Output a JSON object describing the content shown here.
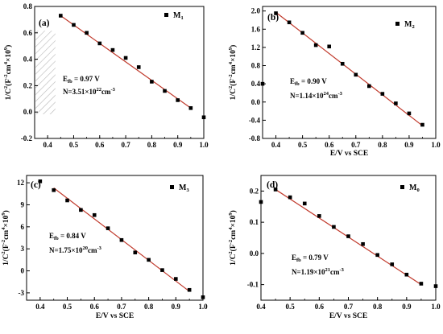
{
  "chart_data": [
    {
      "type": "scatter",
      "panel_label": "(a)",
      "legend": {
        "marker": "■",
        "name": "M",
        "subscript": "1"
      },
      "xlabel": "",
      "ylabel": {
        "main": "1/C",
        "sup1": "2",
        "mid": "(F",
        "sup2": "-2",
        "mid2": "cm",
        "sup3": "4",
        "end": "×10",
        "sup4": "9",
        "close": ")"
      },
      "xlim": [
        0.35,
        1.0
      ],
      "ylim": [
        -0.2,
        0.8
      ],
      "xticks": [
        "0.4",
        "0.5",
        "0.6",
        "0.7",
        "0.8",
        "0.9",
        "1.0"
      ],
      "xtick_values": [
        0.4,
        0.5,
        0.6,
        0.7,
        0.8,
        0.9,
        1.0
      ],
      "yticks": [
        "-0.2",
        "0.0",
        "0.2",
        "0.4",
        "0.6",
        "0.8"
      ],
      "ytick_values": [
        -0.2,
        0.0,
        0.2,
        0.4,
        0.6,
        0.8
      ],
      "x": [
        0.45,
        0.5,
        0.55,
        0.6,
        0.65,
        0.7,
        0.75,
        0.8,
        0.85,
        0.9,
        0.95,
        1.0
      ],
      "y": [
        0.73,
        0.66,
        0.6,
        0.52,
        0.47,
        0.41,
        0.34,
        0.23,
        0.16,
        0.09,
        0.03,
        -0.04
      ],
      "fit": {
        "x": [
          0.45,
          0.95
        ],
        "y": [
          0.73,
          0.03
        ]
      },
      "annotation": {
        "efb": {
          "pre": "E",
          "sub": "fb",
          "post": "= 0.97 V"
        },
        "n": {
          "pre": "N=3.51×10",
          "sup": "22",
          "post": "cm",
          "sup2": "-3"
        }
      },
      "hatched_region": true
    },
    {
      "type": "scatter",
      "panel_label": "(b)",
      "legend": {
        "marker": "■",
        "name": "M",
        "subscript": "2"
      },
      "xlabel": "E/V vs SCE",
      "ylabel": {
        "main": "1/C",
        "sup1": "2",
        "mid": "(F",
        "sup2": "-2",
        "mid2": "cm",
        "sup3": "4",
        "end": "×10",
        "sup4": "9",
        "close": ")"
      },
      "xlim": [
        0.35,
        1.0
      ],
      "ylim": [
        -0.8,
        2.1
      ],
      "xticks": [
        "0.4",
        "0.5",
        "0.6",
        "0.7",
        "0.8",
        "0.9",
        "1.0"
      ],
      "xtick_values": [
        0.4,
        0.5,
        0.6,
        0.7,
        0.8,
        0.9,
        1.0
      ],
      "yticks": [
        "-0.8",
        "-0.4",
        "0.0",
        "0.4",
        "0.8",
        "1.2",
        "1.6",
        "2.0"
      ],
      "ytick_values": [
        -0.8,
        -0.4,
        0.0,
        0.4,
        0.8,
        1.2,
        1.6,
        2.0
      ],
      "x": [
        0.35,
        0.4,
        0.45,
        0.5,
        0.55,
        0.6,
        0.65,
        0.7,
        0.75,
        0.8,
        0.85,
        0.9,
        0.95
      ],
      "y": [
        0.4,
        1.95,
        1.75,
        1.52,
        1.25,
        1.22,
        0.84,
        0.6,
        0.35,
        0.18,
        -0.03,
        -0.25,
        -0.5
      ],
      "fit": {
        "x": [
          0.4,
          0.95
        ],
        "y": [
          1.97,
          -0.52
        ]
      },
      "annotation": {
        "efb": {
          "pre": "E",
          "sub": "fb",
          "post": "= 0.90 V"
        },
        "n": {
          "pre": "N=1.14×10",
          "sup": "24",
          "post": "cm",
          "sup2": "-3"
        }
      },
      "hatched_region": false
    },
    {
      "type": "scatter",
      "panel_label": "(c)",
      "legend": {
        "marker": "■",
        "name": "M",
        "subscript": "3"
      },
      "xlabel": "E/V vs SCE",
      "ylabel": {
        "main": "1/C",
        "sup1": "2",
        "mid": "(F",
        "sup2": "-2",
        "mid2": "cm",
        "sup3": "4",
        "end": "×10",
        "sup4": "9",
        "close": ")"
      },
      "xlim": [
        0.35,
        1.0
      ],
      "ylim": [
        -4,
        13
      ],
      "xticks": [
        "0.4",
        "0.5",
        "0.6",
        "0.7",
        "0.8",
        "0.9",
        "1.0"
      ],
      "xtick_values": [
        0.4,
        0.5,
        0.6,
        0.7,
        0.8,
        0.9,
        1.0
      ],
      "yticks": [
        "-3",
        "0",
        "3",
        "6",
        "9",
        "12"
      ],
      "ytick_values": [
        -3,
        0,
        3,
        6,
        9,
        12
      ],
      "x": [
        0.4,
        0.45,
        0.5,
        0.55,
        0.6,
        0.65,
        0.7,
        0.75,
        0.8,
        0.85,
        0.9,
        0.95,
        1.0
      ],
      "y": [
        12.2,
        11.0,
        9.6,
        8.3,
        7.6,
        5.8,
        4.2,
        2.5,
        1.5,
        0.1,
        -1.1,
        -2.6,
        -3.6
      ],
      "fit": {
        "x": [
          0.45,
          0.95
        ],
        "y": [
          11.3,
          -2.8
        ]
      },
      "annotation": {
        "efb": {
          "pre": "E",
          "sub": "fb",
          "post": "= 0.84 V"
        },
        "n": {
          "pre": "N=1.75×10",
          "sup": "20",
          "post": "cm",
          "sup2": "-3"
        }
      },
      "hatched_region": false
    },
    {
      "type": "scatter",
      "panel_label": "(d)",
      "legend": {
        "marker": "■",
        "name": "M",
        "subscript": "0"
      },
      "xlabel": "E/V vs SCE",
      "ylabel": {
        "main": "1/C",
        "sup1": "2",
        "mid": "(F",
        "sup2": "-2",
        "mid2": "cm",
        "sup3": "4",
        "end": "×10",
        "sup4": "9",
        "close": ")"
      },
      "xlim": [
        0.4,
        1.0
      ],
      "ylim": [
        -0.15,
        0.25
      ],
      "xticks": [
        "0.4",
        "0.5",
        "0.6",
        "0.7",
        "0.8",
        "0.9",
        "1.0"
      ],
      "xtick_values": [
        0.4,
        0.5,
        0.6,
        0.7,
        0.8,
        0.9,
        1.0
      ],
      "yticks": [
        "-0.1",
        "0.0",
        "0.1",
        "0.2"
      ],
      "ytick_values": [
        -0.1,
        0.0,
        0.1,
        0.2
      ],
      "x": [
        0.4,
        0.45,
        0.5,
        0.55,
        0.6,
        0.65,
        0.7,
        0.75,
        0.8,
        0.85,
        0.9,
        0.95,
        1.0
      ],
      "y": [
        0.165,
        0.205,
        0.18,
        0.16,
        0.12,
        0.085,
        0.055,
        0.03,
        -0.005,
        -0.035,
        -0.068,
        -0.097,
        -0.105
      ],
      "fit": {
        "x": [
          0.45,
          0.95
        ],
        "y": [
          0.205,
          -0.1
        ]
      },
      "annotation": {
        "efb": {
          "pre": "E",
          "sub": "fb",
          "post": "= 0.79 V"
        },
        "n": {
          "pre": "N=1.19×10",
          "sup": "21",
          "post": "cm",
          "sup2": "-3"
        }
      },
      "hatched_region": false
    }
  ],
  "colors": {
    "fit_line": "#c0392b",
    "marker": "#000000",
    "axis": "#000000"
  }
}
